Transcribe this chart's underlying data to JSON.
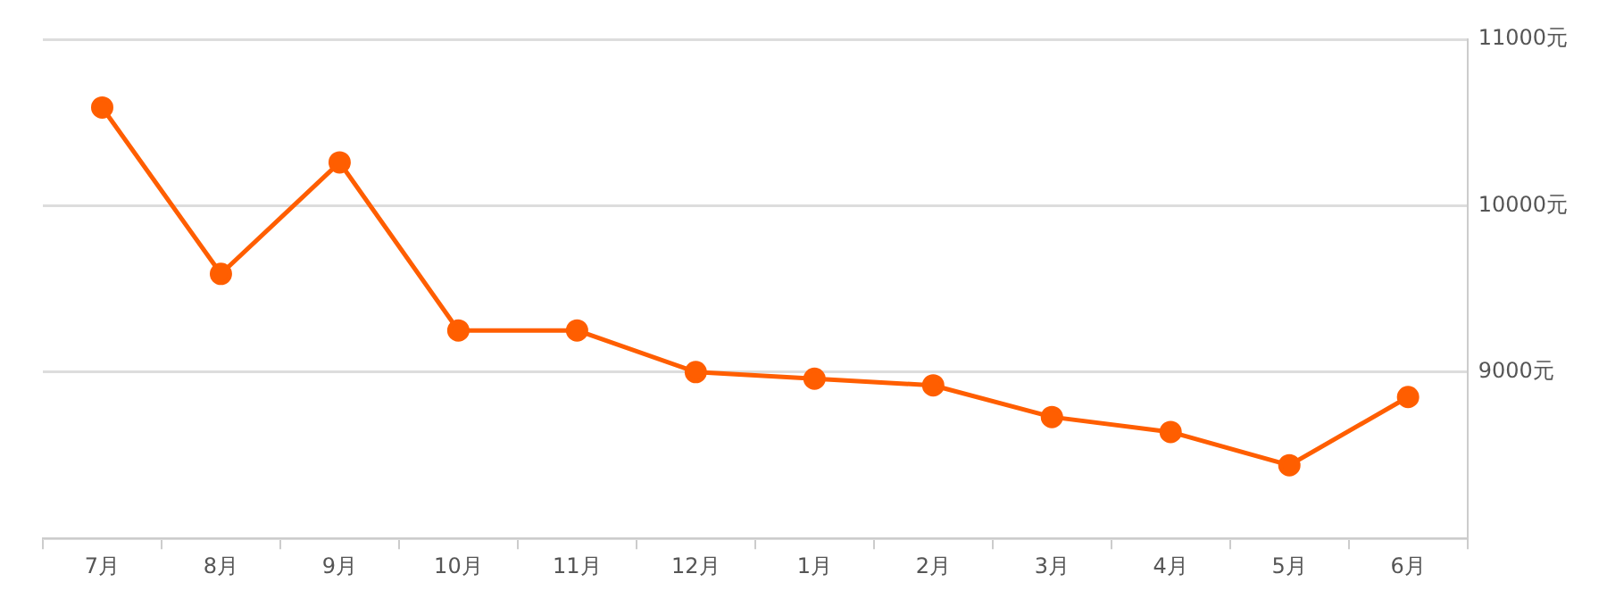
{
  "chart_data": {
    "type": "line",
    "categories": [
      "7月",
      "8月",
      "9月",
      "10月",
      "11月",
      "12月",
      "1月",
      "2月",
      "3月",
      "4月",
      "5月",
      "6月"
    ],
    "series": [
      {
        "color": "#ff5e00",
        "values": [
          10590,
          9590,
          10260,
          9250,
          9250,
          9000,
          8960,
          8920,
          8730,
          8640,
          8440,
          8850
        ]
      }
    ],
    "ylim": [
      8000,
      11000
    ],
    "yticks": [
      {
        "value": 8000,
        "label": null
      },
      {
        "value": 9000,
        "label": "9000元"
      },
      {
        "value": 10000,
        "label": "10000元"
      },
      {
        "value": 11000,
        "label": "11000元"
      }
    ],
    "grid": "y",
    "marker": "circle",
    "line_style": "solid",
    "legend": false
  }
}
